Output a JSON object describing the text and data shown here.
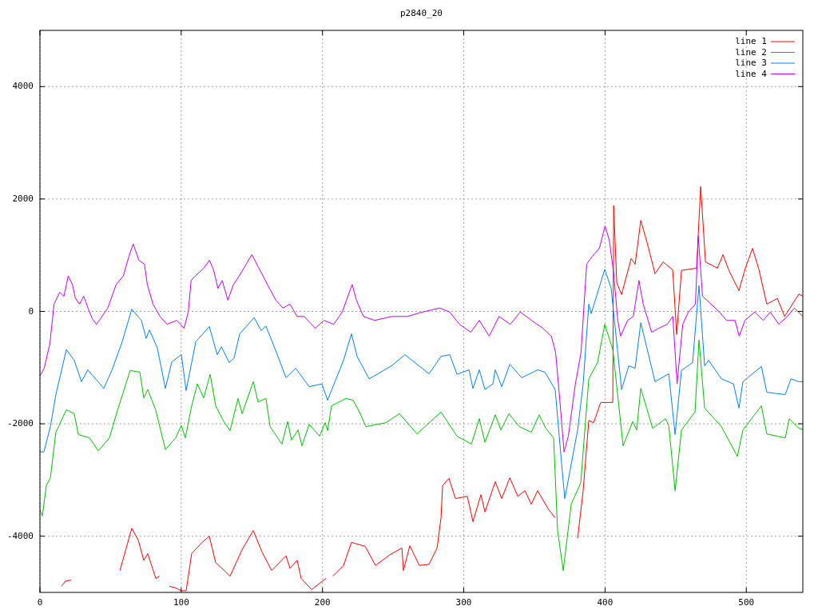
{
  "chart_data": {
    "type": "line",
    "title": "p2840_20",
    "xlim": [
      0,
      540
    ],
    "ylim": [
      -5000,
      5000
    ],
    "xticks": [
      0,
      100,
      200,
      300,
      400,
      500
    ],
    "yticks": [
      -4000,
      -2000,
      0,
      2000,
      4000
    ],
    "grid": true,
    "legend": "top right",
    "line_style": "solid",
    "marker": "none",
    "series": [
      {
        "name": "line 1",
        "color": "#ff0000",
        "x": [
          15.3,
          18.1,
          22.1,
          38,
          56.6,
          61.1,
          65,
          69.6,
          73.5,
          76.3,
          82,
          84.8,
          88.8,
          91.6,
          96.1,
          100.1,
          103.5,
          107.4,
          114.8,
          119.9,
          124.4,
          130.1,
          134.6,
          143.1,
          151,
          157.2,
          164,
          174.2,
          177,
          182.1,
          184.9,
          192.3,
          202.5,
          204.5,
          207.5,
          214.9,
          220.5,
          230.2,
          237.5,
          247.7,
          256.2,
          257.3,
          261.8,
          268.6,
          275.4,
          281.1,
          283.9,
          285,
          289.5,
          294.1,
          302.5,
          306.5,
          312.2,
          315,
          322.3,
          326.9,
          332.6,
          338.2,
          343.3,
          347.8,
          352.3,
          360.2,
          364.7,
          371,
          380.6,
          384.5,
          388.5,
          391.9,
          397,
          405.5,
          406.1,
          408.3,
          411.7,
          418.5,
          421.3,
          425.3,
          429.8,
          435.4,
          441.1,
          447.9,
          450.7,
          454.1,
          464.8,
          467.7,
          471.1,
          479.6,
          483.5,
          487.5,
          494.8,
          499.3,
          504.4,
          509,
          514.5,
          522,
          527.1,
          537.2,
          540
        ],
        "values": [
          -4890,
          -4800,
          -4780,
          null,
          -4610,
          -4210,
          -3860,
          -4070,
          -4430,
          -4310,
          -4750,
          -4710,
          null,
          -4890,
          -4920,
          -4970,
          -4970,
          -4310,
          -4110,
          -4000,
          -4470,
          -4600,
          -4710,
          -4240,
          -3900,
          -4280,
          -4610,
          -4350,
          -4570,
          -4430,
          -4750,
          -4950,
          -4750,
          null,
          -4710,
          -4520,
          -4110,
          -4180,
          -4520,
          -4330,
          -4210,
          -4610,
          -4170,
          -4520,
          -4500,
          -4210,
          -3670,
          -3100,
          -2970,
          -3330,
          -3290,
          -3740,
          -3260,
          -3570,
          -3030,
          -3330,
          -2960,
          -3290,
          -3190,
          -3430,
          -3190,
          -3530,
          -3670,
          null,
          -4040,
          -3190,
          -1940,
          -1980,
          -1620,
          -1620,
          1880,
          510,
          300,
          940,
          840,
          1620,
          1220,
          670,
          880,
          740,
          -410,
          730,
          770,
          2220,
          880,
          770,
          1010,
          740,
          370,
          770,
          1120,
          740,
          130,
          230,
          -90,
          310,
          270
        ]
      },
      {
        "name": "line 2",
        "color": "#00c000",
        "x": [
          0,
          1.7,
          4.5,
          7.4,
          11.3,
          18.7,
          24.3,
          27.1,
          35.1,
          41.3,
          49.2,
          54.9,
          63.9,
          70.7,
          73.5,
          76.3,
          82,
          88.8,
          96.1,
          100.1,
          102.9,
          107.4,
          111.4,
          115.9,
          120.5,
          124.4,
          130.1,
          134.6,
          140.2,
          143.1,
          151,
          154.4,
          160,
          162.9,
          171.3,
          175.3,
          178.1,
          182.7,
          185.5,
          190.6,
          197.9,
          201.9,
          203.6,
          206.4,
          216.6,
          221.7,
          226.2,
          230.7,
          244.9,
          254.5,
          266.9,
          283.9,
          295.2,
          305.4,
          311,
          315,
          322.3,
          326.3,
          332,
          339.3,
          347.8,
          353.4,
          358,
          363.6,
          366.4,
          370.4,
          376.1,
          382.8,
          388.5,
          394.7,
          399.8,
          405.5,
          412.8,
          419.6,
          422.4,
          425.3,
          433.7,
          442.8,
          445.1,
          449.6,
          454.1,
          463.7,
          466.5,
          470.5,
          482.4,
          493.7,
          497.6,
          510.7,
          514.5,
          527.6,
          530.4,
          537.2,
          540
        ],
        "values": [
          -3530,
          -3640,
          -3100,
          -2960,
          -2150,
          -1750,
          -1820,
          -2190,
          -2250,
          -2480,
          -2250,
          -1760,
          -1050,
          -1080,
          -1540,
          -1390,
          -1760,
          -2460,
          -2250,
          -2030,
          -2250,
          -1680,
          -1290,
          -1540,
          -1120,
          -1680,
          -1960,
          -2120,
          -1550,
          -1820,
          -1250,
          -1610,
          -1550,
          -2050,
          -2360,
          -1960,
          -2290,
          -2110,
          -2390,
          -2010,
          -2220,
          -1980,
          -2120,
          -1680,
          -1550,
          -1580,
          -1790,
          -2050,
          -1980,
          -1820,
          -2180,
          -1790,
          -2220,
          -2360,
          -1910,
          -2330,
          -1840,
          -2110,
          -1820,
          -2050,
          -2150,
          -1840,
          -2080,
          -2250,
          -3900,
          -4610,
          -3430,
          -3050,
          -1200,
          -910,
          -230,
          -680,
          -2390,
          -1960,
          -2110,
          -1370,
          -2080,
          -1910,
          -2030,
          -3190,
          -2110,
          -1790,
          -510,
          -1720,
          -2050,
          -2580,
          -2110,
          -1680,
          -2180,
          -2250,
          -1910,
          -2080,
          -2100
        ]
      },
      {
        "name": "line 3",
        "color": "#0080ff",
        "x": [
          0,
          2.8,
          7.4,
          11.3,
          18.7,
          24.3,
          29.4,
          33.9,
          45.2,
          50.9,
          58.2,
          65,
          71.8,
          75.2,
          77.5,
          83.1,
          88.8,
          93.3,
          100.1,
          103.5,
          110.3,
          119.9,
          125.5,
          128.4,
          134,
          137.4,
          141.4,
          151.6,
          156.6,
          160,
          168,
          174.2,
          181,
          190.6,
          199.6,
          203.6,
          214.9,
          220.5,
          224.5,
          233,
          248.8,
          258.4,
          275.4,
          283.9,
          290.1,
          295.2,
          303.7,
          306.5,
          311,
          315,
          320.6,
          322.3,
          326.9,
          332.6,
          341,
          352.3,
          357.4,
          364.7,
          369.3,
          371.5,
          380.6,
          384.5,
          388.5,
          390.2,
          399.8,
          404.3,
          411.7,
          416.8,
          421.3,
          425.3,
          435.4,
          445.1,
          449.6,
          454.1,
          462,
          466.5,
          470.5,
          473.3,
          482.4,
          490.9,
          494.8,
          497.6,
          510.7,
          514.5,
          527.6,
          531.6,
          537.2,
          540
        ],
        "values": [
          -2500,
          -2500,
          -2050,
          -1480,
          -680,
          -870,
          -1250,
          -1040,
          -1370,
          -1050,
          -540,
          40,
          -160,
          -480,
          -330,
          -650,
          -1370,
          -900,
          -770,
          -1410,
          -540,
          -270,
          -770,
          -630,
          -910,
          -830,
          -400,
          -110,
          -340,
          -260,
          -770,
          -1180,
          -1010,
          -1340,
          -1290,
          -1580,
          -870,
          -400,
          -800,
          -1200,
          -970,
          -770,
          -1110,
          -800,
          -770,
          -1120,
          -1040,
          -1370,
          -1040,
          -1390,
          -1290,
          -1040,
          -1340,
          -940,
          -1180,
          -1040,
          -1080,
          -1390,
          -2720,
          -3330,
          -2110,
          -1290,
          130,
          -40,
          750,
          410,
          -1390,
          -970,
          -1010,
          -200,
          -1250,
          -1110,
          -2190,
          -1050,
          -910,
          460,
          -970,
          -870,
          -1200,
          -1290,
          -1720,
          -1250,
          -980,
          -1440,
          -1480,
          -1200,
          -1250,
          -1250
        ]
      },
      {
        "name": "line 4",
        "color": "#c000ff",
        "x": [
          0,
          3,
          7,
          10,
          14,
          17,
          20,
          23,
          25,
          28,
          31,
          34,
          37,
          40,
          42,
          48,
          54,
          59,
          63,
          66,
          70,
          74,
          76,
          80,
          85,
          90,
          97,
          102,
          105,
          107,
          110,
          116,
          120,
          123,
          126,
          129,
          133,
          137,
          141,
          146,
          150,
          155,
          161,
          167,
          172,
          177,
          182,
          187,
          195,
          201,
          208,
          214,
          221,
          224,
          229,
          237,
          249,
          260,
          271,
          283,
          290,
          297,
          305,
          311,
          318,
          325,
          333,
          340,
          348,
          356,
          362,
          365,
          368,
          371,
          374,
          379,
          383,
          387,
          391,
          396,
          400,
          403,
          406,
          409,
          411,
          416,
          420,
          424,
          427,
          433,
          438,
          444,
          448,
          451,
          455,
          459,
          464,
          466,
          469,
          475,
          481,
          486,
          492,
          495,
          499,
          506,
          512,
          517,
          523,
          529,
          534,
          540
        ],
        "values": [
          -1150,
          -1010,
          -580,
          130,
          340,
          270,
          630,
          480,
          240,
          130,
          270,
          60,
          -130,
          -230,
          -160,
          60,
          480,
          630,
          980,
          1200,
          910,
          840,
          480,
          130,
          -90,
          -230,
          -160,
          -300,
          -10,
          550,
          630,
          770,
          910,
          730,
          410,
          550,
          200,
          480,
          630,
          840,
          1010,
          770,
          480,
          200,
          60,
          130,
          -90,
          -90,
          -300,
          -160,
          -230,
          -10,
          480,
          200,
          -90,
          -160,
          -90,
          -90,
          -10,
          60,
          -10,
          -230,
          -370,
          -160,
          -440,
          -90,
          -230,
          -10,
          -160,
          -300,
          -440,
          -730,
          -1580,
          -2500,
          -2220,
          -1290,
          -730,
          840,
          980,
          1120,
          1520,
          1270,
          700,
          -160,
          -440,
          -160,
          -90,
          550,
          130,
          -370,
          -300,
          -230,
          -90,
          -1290,
          -230,
          -10,
          130,
          1340,
          270,
          130,
          -10,
          -160,
          -160,
          -440,
          -160,
          -10,
          -160,
          -10,
          -230,
          -90,
          60,
          -90
        ]
      }
    ]
  }
}
